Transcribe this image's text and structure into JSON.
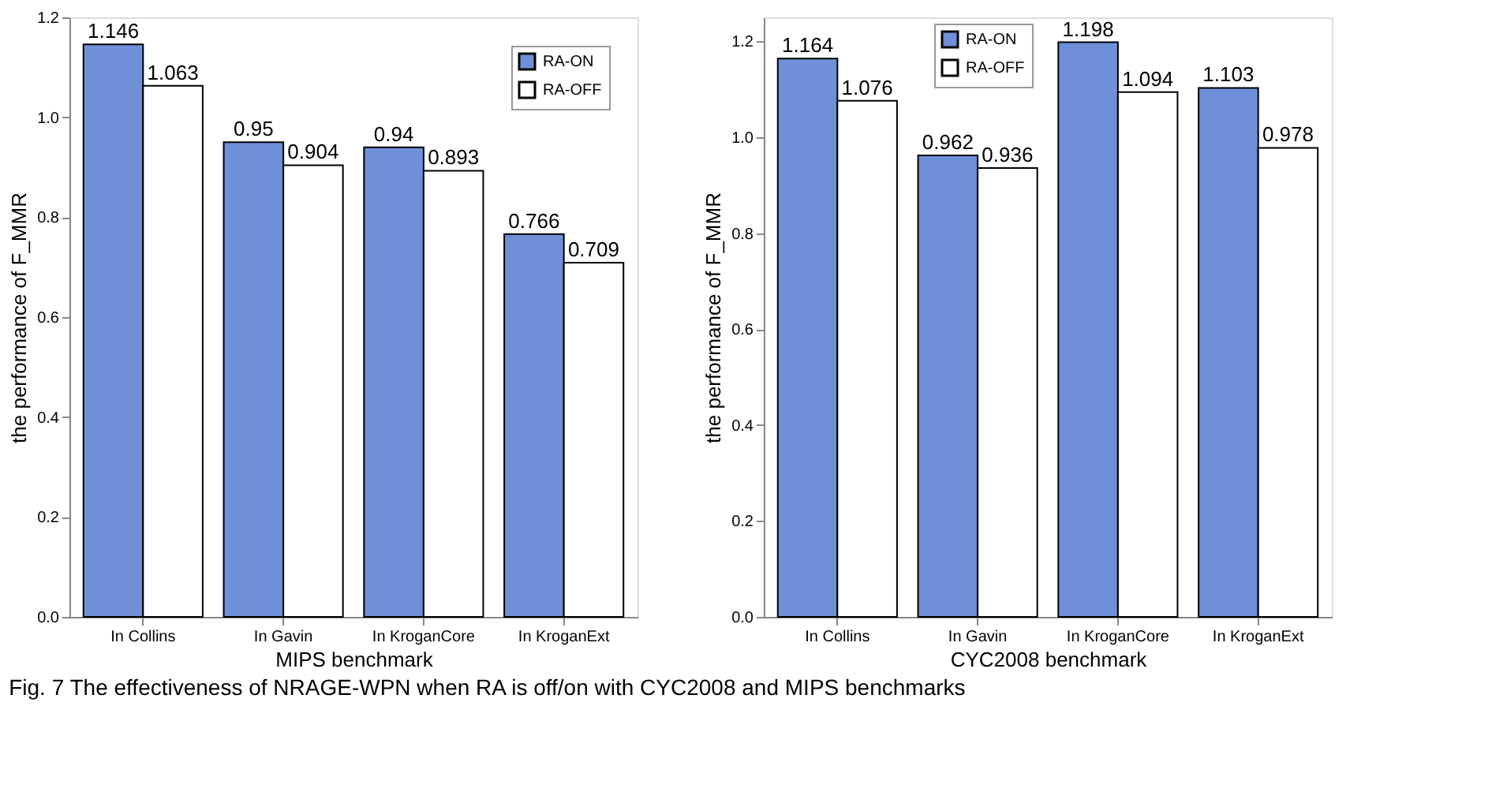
{
  "chart_data": [
    {
      "type": "bar",
      "xlabel": "MIPS benchmark",
      "ylabel": "the performance of F_MMR",
      "categories": [
        "In Collins",
        "In Gavin",
        "In KroganCore",
        "In KroganExt"
      ],
      "series": [
        {
          "name": "RA-ON",
          "color": "#6f8fd8",
          "values": [
            1.146,
            0.95,
            0.94,
            0.766
          ]
        },
        {
          "name": "RA-OFF",
          "color": "#ffffff",
          "values": [
            1.063,
            0.904,
            0.893,
            0.709
          ]
        }
      ],
      "ylim": [
        0,
        1.2
      ],
      "yticks": [
        {
          "value": 0,
          "label": "0.0"
        },
        0.2,
        0.4,
        0.6,
        0.8,
        {
          "value": 1,
          "label": "1.0"
        },
        1.2
      ],
      "data_labels": true,
      "legend": "top right",
      "grid": false,
      "annotations": [
        "Fig. 7 The effectiveness of NRAGE-WPN when RA is off/on with CYC2008 and MIPS benchmarks"
      ]
    },
    {
      "type": "bar",
      "xlabel": "CYC2008 benchmark",
      "ylabel": "the performance of F_MMR",
      "categories": [
        "In Collins",
        "In Gavin",
        "In KroganCore",
        "In KroganExt"
      ],
      "series": [
        {
          "name": "RA-ON",
          "color": "#6f8fd8",
          "values": [
            1.164,
            0.962,
            1.198,
            1.103
          ]
        },
        {
          "name": "RA-OFF",
          "color": "#ffffff",
          "values": [
            1.076,
            0.936,
            1.094,
            0.978
          ]
        }
      ],
      "ylim": [
        0,
        1.25
      ],
      "yticks": [
        {
          "value": 0,
          "label": "0.0"
        },
        0.2,
        0.4,
        0.6,
        0.8,
        {
          "value": 1,
          "label": "1.0"
        },
        1.2
      ],
      "data_labels": true,
      "legend": "top",
      "grid": false
    }
  ]
}
